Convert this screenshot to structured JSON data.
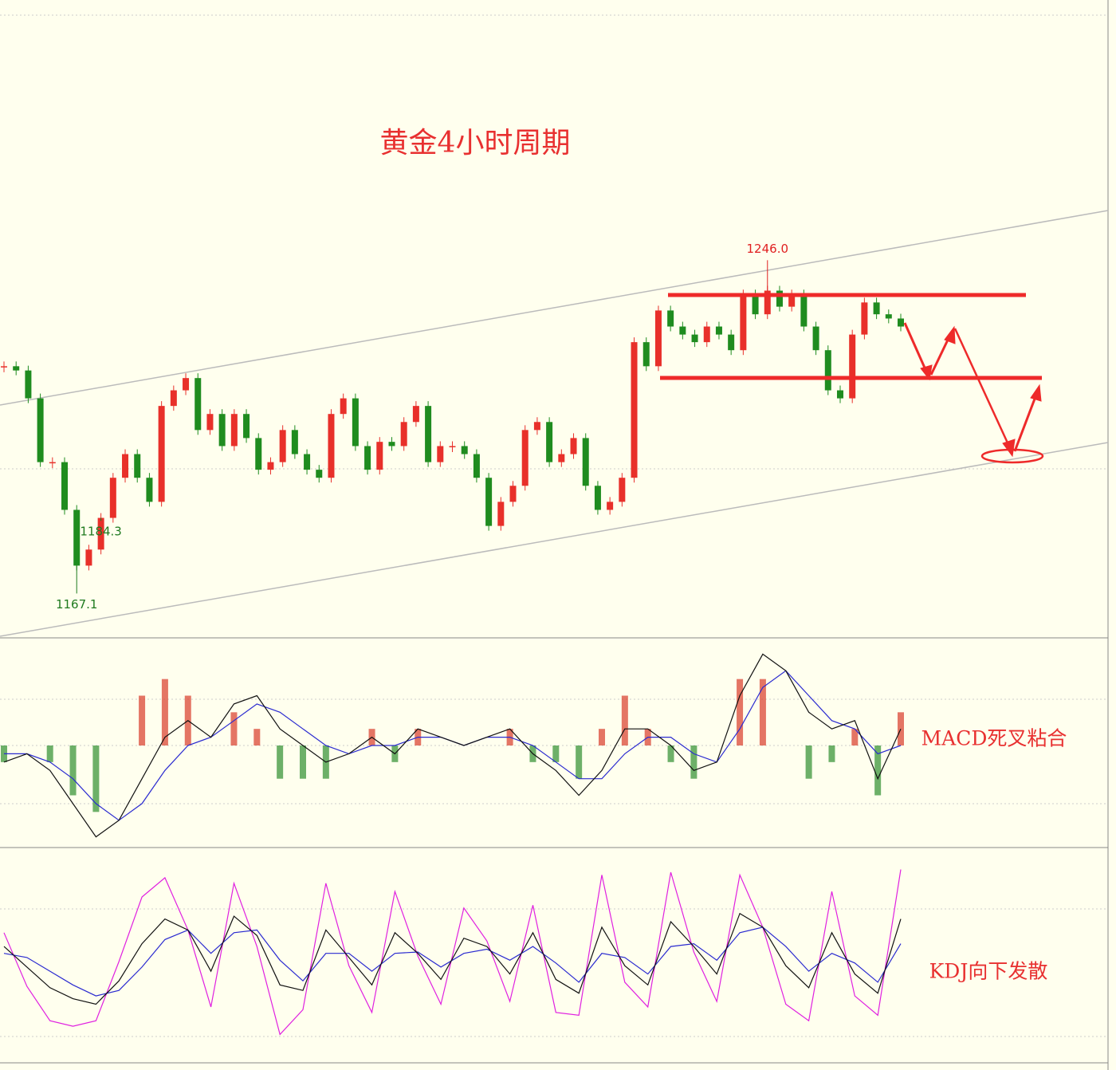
{
  "chart_data": [
    {
      "type": "candlestick",
      "title": "黄金4小时周期",
      "closes": [
        1220.9,
        1219.9,
        1213.3,
        1198.2,
        1198.2,
        1186.9,
        1173.7,
        1177.5,
        1185.0,
        1194.5,
        1200.1,
        1194.5,
        1188.8,
        1211.5,
        1215.2,
        1218.1,
        1205.8,
        1209.6,
        1202.0,
        1209.6,
        1203.9,
        1196.4,
        1198.2,
        1205.8,
        1200.1,
        1196.4,
        1194.5,
        1209.6,
        1213.3,
        1202.0,
        1196.4,
        1203.0,
        1202.0,
        1207.7,
        1211.5,
        1198.2,
        1202.0,
        1202.0,
        1200.1,
        1194.5,
        1183.1,
        1188.8,
        1192.6,
        1205.8,
        1207.7,
        1198.2,
        1200.1,
        1203.9,
        1192.6,
        1186.9,
        1188.8,
        1194.5,
        1226.6,
        1220.9,
        1234.1,
        1230.3,
        1228.4,
        1226.6,
        1230.3,
        1228.4,
        1224.7,
        1237.9,
        1233.2,
        1238.8,
        1235.0,
        1237.9,
        1230.3,
        1224.7,
        1215.2,
        1213.3,
        1228.4,
        1236.0,
        1233.2,
        1232.2,
        1230.3
      ],
      "up_color": "#e8302a",
      "down_color": "#1f8c1f",
      "ylim": [
        1156.6,
        1307.6
      ],
      "annotations": [
        {
          "value": 1167.1,
          "label": "1167.1",
          "color": "#1f7a1f"
        },
        {
          "value": 1184.3,
          "label": "1184.3",
          "color": "#1f7a1f"
        },
        {
          "value": 1246,
          "label": "1246.0",
          "color": "#e02020"
        }
      ]
    },
    {
      "type": "macd",
      "label": "MACD死叉粘合",
      "dif": [
        -2,
        -1,
        -3,
        -7,
        -11,
        -9,
        -4,
        1,
        3,
        1,
        5,
        6,
        2,
        0,
        -2,
        -1,
        1,
        -1,
        2,
        1,
        0,
        1,
        2,
        -1,
        -3,
        -6,
        -3,
        2,
        2,
        0,
        -3,
        -2,
        6,
        11,
        9,
        4,
        2,
        3,
        -4,
        2
      ],
      "dea": [
        -1,
        -1,
        -2,
        -4,
        -7,
        -9,
        -7,
        -3,
        0,
        1,
        3,
        5,
        4,
        2,
        0,
        -1,
        0,
        0,
        1,
        1,
        0,
        1,
        1,
        0,
        -2,
        -4,
        -4,
        -1,
        1,
        1,
        -1,
        -2,
        2,
        7,
        9,
        6,
        3,
        2,
        -1,
        0
      ],
      "hist": [
        -2,
        0,
        -2,
        -6,
        -8,
        0,
        6,
        8,
        6,
        0,
        4,
        2,
        -4,
        -4,
        -4,
        0,
        2,
        -2,
        2,
        0,
        0,
        0,
        2,
        -2,
        -2,
        -4,
        2,
        6,
        2,
        -2,
        -4,
        0,
        8,
        8,
        0,
        -4,
        -2,
        2,
        -6,
        4
      ],
      "ylim": [
        -12,
        12
      ],
      "dif_color": "#111111",
      "dea_color": "#2a2ad0",
      "pos_color": "#d83a2a",
      "neg_color": "#2f8f2f"
    },
    {
      "type": "kdj",
      "label": "KDJ向下发散",
      "k": [
        60,
        45,
        30,
        22,
        18,
        35,
        62,
        80,
        72,
        42,
        82,
        68,
        32,
        28,
        72,
        52,
        32,
        70,
        55,
        36,
        66,
        60,
        40,
        70,
        36,
        26,
        74,
        46,
        32,
        78,
        60,
        40,
        84,
        74,
        46,
        30,
        70,
        40,
        26,
        80
      ],
      "d": [
        55,
        52,
        42,
        32,
        24,
        28,
        45,
        65,
        72,
        55,
        70,
        72,
        50,
        35,
        55,
        55,
        42,
        55,
        56,
        45,
        55,
        58,
        50,
        60,
        48,
        34,
        55,
        52,
        40,
        60,
        62,
        50,
        70,
        74,
        60,
        42,
        55,
        48,
        34,
        62
      ],
      "j": [
        70,
        31,
        6,
        2,
        6,
        49,
        96,
        110,
        72,
        16,
        106,
        60,
        -4,
        14,
        106,
        46,
        12,
        100,
        53,
        18,
        88,
        64,
        20,
        90,
        12,
        10,
        112,
        34,
        16,
        114,
        56,
        20,
        112,
        74,
        18,
        6,
        100,
        24,
        10,
        116
      ],
      "ylim": [
        -20,
        125
      ],
      "k_color": "#111111",
      "d_color": "#2a2ad0",
      "j_color": "#e020e0"
    }
  ]
}
